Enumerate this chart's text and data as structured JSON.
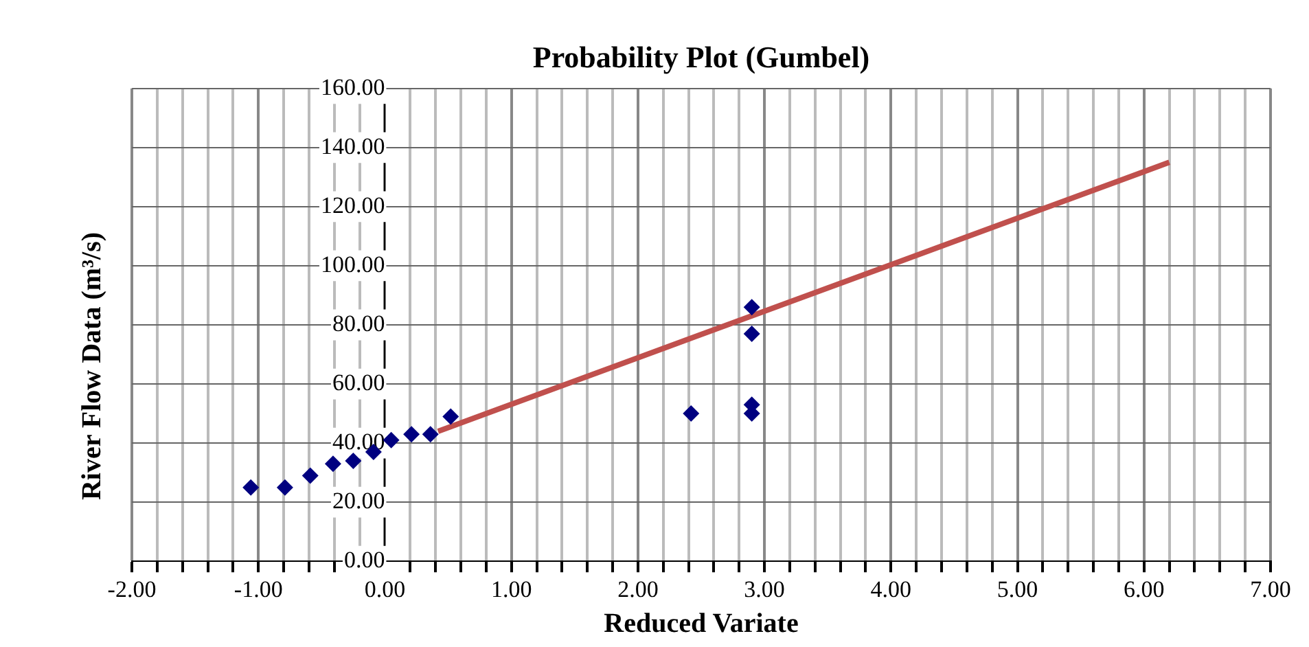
{
  "chart_data": {
    "type": "scatter",
    "title": "Probability Plot (Gumbel)",
    "xlabel": "Reduced Variate",
    "ylabel": "River Flow Data (m³/s)",
    "xlim": [
      -2,
      7
    ],
    "ylim": [
      0,
      160
    ],
    "xticks": [
      {
        "value": -2,
        "label": "-2.00"
      },
      {
        "value": -1.8,
        "label": null
      },
      {
        "value": -1.6,
        "label": null
      },
      {
        "value": -1.4,
        "label": null
      },
      {
        "value": -1.2,
        "label": null
      },
      {
        "value": -1,
        "label": "-1.00"
      },
      {
        "value": -0.8,
        "label": null
      },
      {
        "value": -0.6,
        "label": null
      },
      {
        "value": -0.4,
        "label": null
      },
      {
        "value": -0.2,
        "label": null
      },
      {
        "value": 0,
        "label": "0.00"
      },
      {
        "value": 0.2,
        "label": null
      },
      {
        "value": 0.4,
        "label": null
      },
      {
        "value": 0.6,
        "label": null
      },
      {
        "value": 0.8,
        "label": null
      },
      {
        "value": 1,
        "label": "1.00"
      },
      {
        "value": 1.2,
        "label": null
      },
      {
        "value": 1.4,
        "label": null
      },
      {
        "value": 1.6,
        "label": null
      },
      {
        "value": 1.8,
        "label": null
      },
      {
        "value": 2,
        "label": "2.00"
      },
      {
        "value": 2.2,
        "label": null
      },
      {
        "value": 2.4,
        "label": null
      },
      {
        "value": 2.6,
        "label": null
      },
      {
        "value": 2.8,
        "label": null
      },
      {
        "value": 3,
        "label": "3.00"
      },
      {
        "value": 3.2,
        "label": null
      },
      {
        "value": 3.4,
        "label": null
      },
      {
        "value": 3.6,
        "label": null
      },
      {
        "value": 3.8,
        "label": null
      },
      {
        "value": 4,
        "label": "4.00"
      },
      {
        "value": 4.2,
        "label": null
      },
      {
        "value": 4.4,
        "label": null
      },
      {
        "value": 4.6,
        "label": null
      },
      {
        "value": 4.8,
        "label": null
      },
      {
        "value": 5,
        "label": "5.00"
      },
      {
        "value": 5.2,
        "label": null
      },
      {
        "value": 5.4,
        "label": null
      },
      {
        "value": 5.6,
        "label": null
      },
      {
        "value": 5.8,
        "label": null
      },
      {
        "value": 6,
        "label": "6.00"
      },
      {
        "value": 6.2,
        "label": null
      },
      {
        "value": 6.4,
        "label": null
      },
      {
        "value": 6.6,
        "label": null
      },
      {
        "value": 6.8,
        "label": null
      },
      {
        "value": 7,
        "label": "7.00"
      }
    ],
    "yticks": [
      {
        "value": 0,
        "label": "0.00"
      },
      {
        "value": 20,
        "label": "20.00"
      },
      {
        "value": 40,
        "label": "40.00"
      },
      {
        "value": 60,
        "label": "60.00"
      },
      {
        "value": 80,
        "label": "80.00"
      },
      {
        "value": 100,
        "label": "100.00"
      },
      {
        "value": 120,
        "label": "120.00"
      },
      {
        "value": 140,
        "label": "140.00"
      },
      {
        "value": 160,
        "label": "160.00"
      }
    ],
    "grid": true,
    "legend": false,
    "series": [
      {
        "color": "#000080",
        "marker": "diamond",
        "x": [
          -1.06,
          -0.79,
          -0.59,
          -0.41,
          -0.25,
          -0.09,
          0.05,
          0.21,
          0.36,
          0.52,
          2.42,
          2.9,
          2.9,
          2.9,
          2.9
        ],
        "values": [
          25,
          25,
          29,
          33,
          34,
          37,
          41,
          43,
          43,
          49,
          50,
          86,
          77,
          53,
          50
        ]
      },
      {
        "type": "line",
        "color": "#c0504d",
        "marker": "none",
        "x": [
          0.42,
          6.2
        ],
        "values": [
          44,
          135
        ]
      }
    ]
  }
}
